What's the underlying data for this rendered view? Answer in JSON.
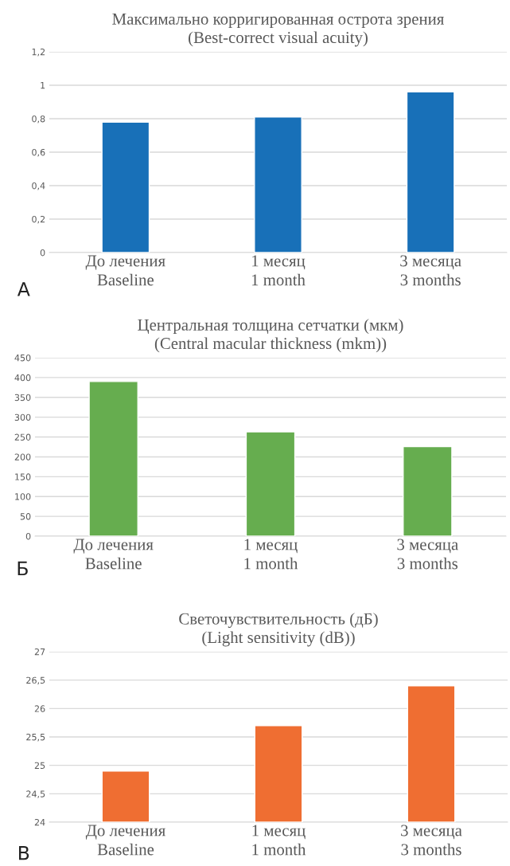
{
  "chart_data": [
    {
      "type": "bar",
      "title": "Максимально корригированная острота зрения\n(Best-correct visual acuity)",
      "categories": [
        "До лечения\nBaseline",
        "1 месяц\n1 month",
        "3 месяца\n3 months"
      ],
      "values": [
        0.78,
        0.81,
        0.96
      ],
      "color": "#1870b8",
      "ylim": [
        0,
        1.2
      ],
      "yticks": [
        0,
        {
          "value": 0.2,
          "label": "0,2"
        },
        {
          "value": 0.4,
          "label": "0,4"
        },
        {
          "value": 0.6,
          "label": "0,6"
        },
        {
          "value": 0.8,
          "label": "0,8"
        },
        1,
        {
          "value": 1.2,
          "label": "1,2"
        }
      ],
      "grid": "y",
      "annotations": [
        "А"
      ]
    },
    {
      "type": "bar",
      "title": "Центральная толщина сетчатки (мкм)\n(Central macular thickness (mkm))",
      "categories": [
        "До лечения\nBaseline",
        "1 месяц\n1 month",
        "3 месяца\n3 months"
      ],
      "values": [
        390,
        263,
        226
      ],
      "color": "#66ad4f",
      "ylim": [
        0,
        450
      ],
      "yticks": [
        0,
        50,
        100,
        150,
        200,
        250,
        300,
        350,
        400,
        450
      ],
      "grid": "y",
      "annotations": [
        "Б"
      ]
    },
    {
      "type": "bar",
      "title": "Светочувствительность (дБ)\n(Light sensitivity (dB))",
      "categories": [
        "До лечения\nBaseline",
        "1 месяц\n1 month",
        "3 месяца\n3 months"
      ],
      "values": [
        24.9,
        25.7,
        26.4
      ],
      "color": "#ef6e32",
      "ylim": [
        24,
        27
      ],
      "yticks": [
        24,
        {
          "value": 24.5,
          "label": "24,5"
        },
        25,
        {
          "value": 25.5,
          "label": "25,5"
        },
        26,
        {
          "value": 26.5,
          "label": "26,5"
        },
        27
      ],
      "grid": "y",
      "annotations": [
        "В"
      ]
    }
  ]
}
